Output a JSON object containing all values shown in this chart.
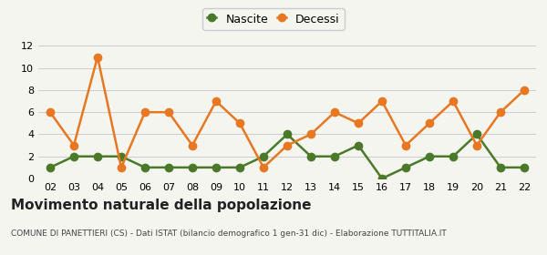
{
  "years": [
    "02",
    "03",
    "04",
    "05",
    "06",
    "07",
    "08",
    "09",
    "10",
    "11",
    "12",
    "13",
    "14",
    "15",
    "16",
    "17",
    "18",
    "19",
    "20",
    "21",
    "22"
  ],
  "nascite": [
    1,
    2,
    2,
    2,
    1,
    1,
    1,
    1,
    1,
    2,
    4,
    2,
    2,
    3,
    0,
    1,
    2,
    2,
    4,
    1,
    1
  ],
  "decessi": [
    6,
    3,
    11,
    1,
    6,
    6,
    3,
    7,
    5,
    1,
    3,
    4,
    6,
    5,
    7,
    3,
    5,
    7,
    3,
    6,
    8
  ],
  "nascite_color": "#4a7a29",
  "decessi_color": "#e87722",
  "background_color": "#f5f5f0",
  "grid_color": "#cccccc",
  "ylim": [
    0,
    12
  ],
  "yticks": [
    0,
    2,
    4,
    6,
    8,
    10,
    12
  ],
  "title": "Movimento naturale della popolazione",
  "subtitle": "COMUNE DI PANETTIERI (CS) - Dati ISTAT (bilancio demografico 1 gen-31 dic) - Elaborazione TUTTITALIA.IT",
  "legend_nascite": "Nascite",
  "legend_decessi": "Decessi",
  "marker_size": 6,
  "line_width": 1.8
}
